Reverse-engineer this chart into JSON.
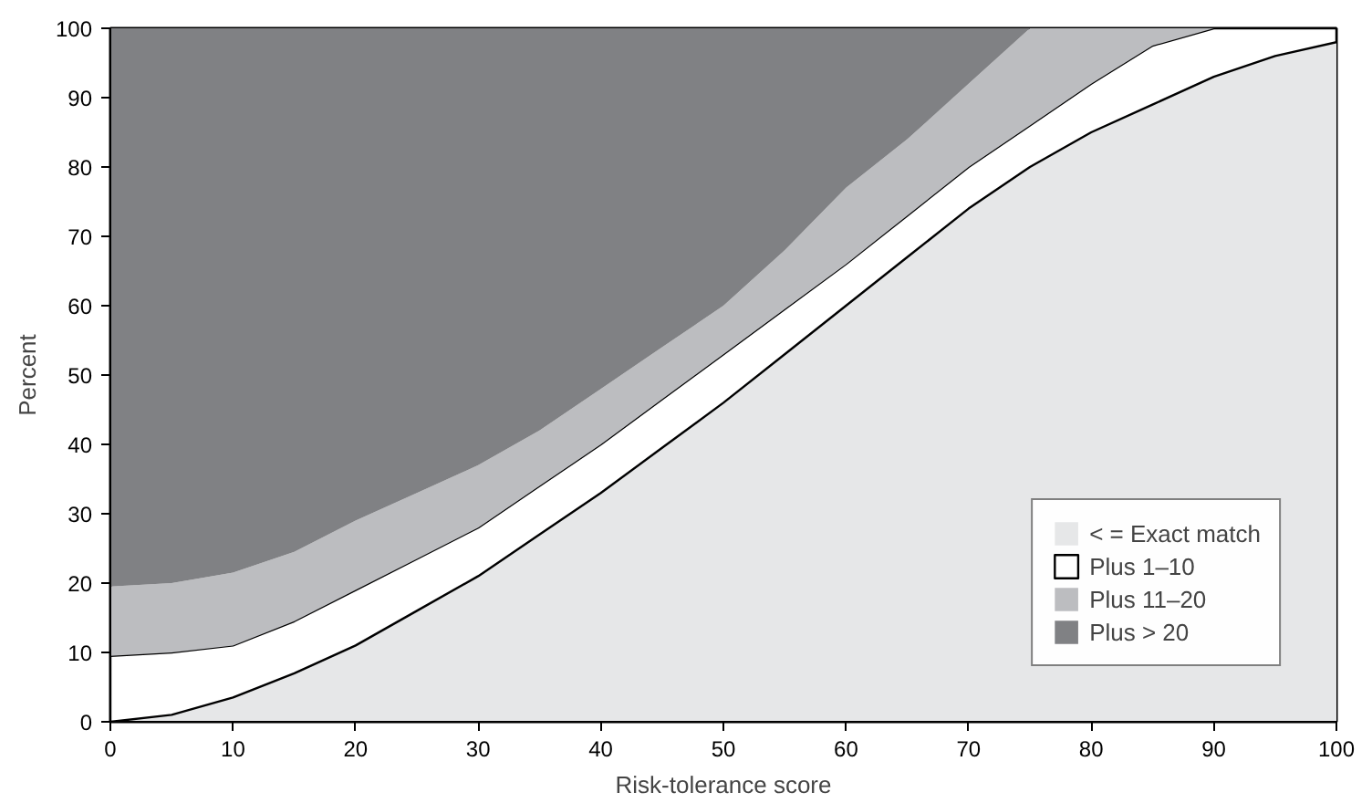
{
  "chart_data": {
    "type": "area",
    "stacked": true,
    "xlabel": "Risk-tolerance score",
    "ylabel": "Percent",
    "x": [
      0,
      5,
      10,
      15,
      20,
      25,
      30,
      35,
      40,
      45,
      50,
      55,
      60,
      65,
      70,
      75,
      80,
      85,
      90,
      95,
      100
    ],
    "series": [
      {
        "name": "< = Exact match",
        "color": "#e6e7e8",
        "values": [
          0,
          1,
          3.5,
          7,
          11,
          16,
          21,
          27,
          33,
          39.5,
          46,
          53,
          60,
          67,
          74,
          80,
          85,
          89,
          93,
          96,
          98
        ]
      },
      {
        "name": "Plus 1–10",
        "color": "#ffffff",
        "values": [
          9.5,
          9,
          7.5,
          7.5,
          8,
          7.5,
          7,
          7,
          7,
          7,
          7,
          6.5,
          6,
          6,
          6,
          6,
          7,
          8.5,
          7,
          4,
          2
        ]
      },
      {
        "name": "Plus 11–20",
        "color": "#bcbdc0",
        "values": [
          10,
          10,
          10.5,
          10,
          10,
          9.5,
          9,
          8,
          8,
          7.5,
          7,
          8.5,
          11,
          11,
          12,
          14,
          8,
          2.5,
          0,
          0,
          0
        ]
      },
      {
        "name": "Plus > 20",
        "color": "#808184",
        "values": [
          80.5,
          80,
          78.5,
          75.5,
          71,
          67,
          63,
          58,
          52,
          46,
          40,
          32,
          23,
          16,
          8,
          0,
          0,
          0,
          0,
          0,
          0
        ]
      }
    ],
    "xlim": [
      0,
      100
    ],
    "ylim": [
      0,
      100
    ],
    "xticks": [
      0,
      10,
      20,
      30,
      40,
      50,
      60,
      70,
      80,
      90,
      100
    ],
    "yticks": [
      0,
      10,
      20,
      30,
      40,
      50,
      60,
      70,
      80,
      90,
      100
    ],
    "grid": false,
    "legend": "bottom right"
  }
}
